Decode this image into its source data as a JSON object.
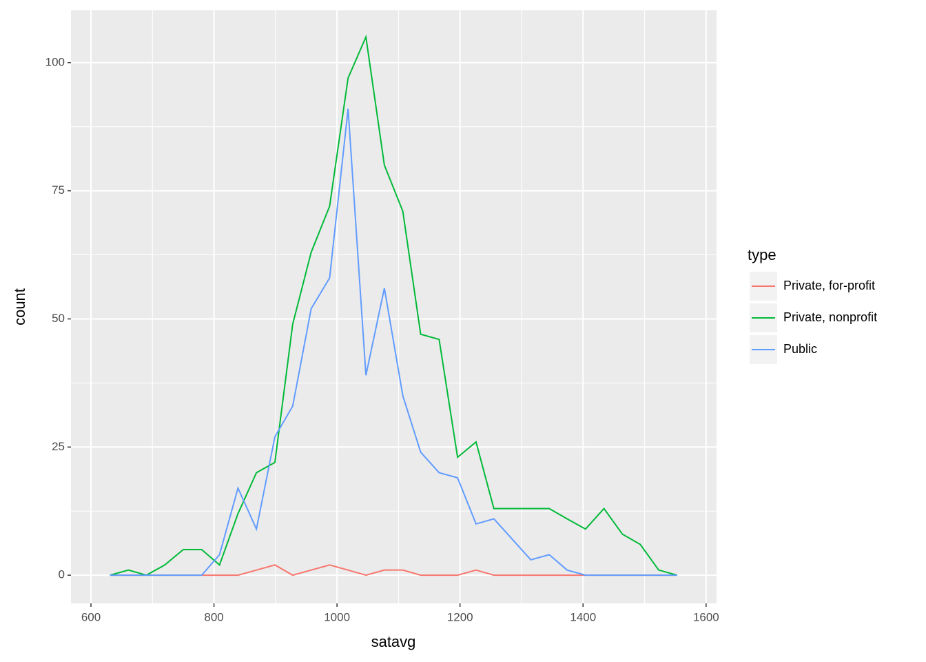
{
  "chart_data": {
    "type": "line",
    "x_label": "satavg",
    "y_label": "count",
    "x": [
      631,
      661,
      690,
      720,
      750,
      780,
      809,
      839,
      869,
      899,
      928,
      958,
      988,
      1018,
      1047,
      1077,
      1107,
      1136,
      1166,
      1196,
      1226,
      1255,
      1285,
      1315,
      1345,
      1374,
      1404,
      1434,
      1464,
      1493,
      1523,
      1553
    ],
    "series": [
      {
        "name": "Private, for-profit",
        "color": "#f8766d",
        "values": [
          0,
          0,
          0,
          0,
          0,
          0,
          0,
          0,
          1,
          2,
          0,
          1,
          2,
          1,
          0,
          1,
          1,
          0,
          0,
          0,
          1,
          0,
          0,
          0,
          0,
          0,
          0,
          0,
          0,
          0,
          0,
          0
        ]
      },
      {
        "name": "Private, nonprofit",
        "color": "#00ba38",
        "values": [
          0,
          1,
          0,
          2,
          5,
          5,
          2,
          12,
          20,
          22,
          49,
          63,
          72,
          97,
          105,
          80,
          71,
          47,
          46,
          23,
          26,
          13,
          13,
          13,
          13,
          11,
          9,
          13,
          8,
          6,
          1,
          0
        ]
      },
      {
        "name": "Public",
        "color": "#619cff",
        "values": [
          0,
          0,
          0,
          0,
          0,
          0,
          4,
          17,
          9,
          27,
          33,
          52,
          58,
          91,
          39,
          56,
          35,
          24,
          20,
          19,
          10,
          11,
          7,
          3,
          4,
          1,
          0,
          0,
          0,
          0,
          0,
          0
        ]
      }
    ],
    "legend_title": "type",
    "xlim": [
      567.5,
      1617
    ],
    "ylim": [
      -5.5,
      110.2
    ],
    "xticks": [
      600,
      800,
      1000,
      1200,
      1400,
      1600
    ],
    "yticks": [
      0,
      25,
      50,
      75,
      100
    ],
    "grid": true
  }
}
